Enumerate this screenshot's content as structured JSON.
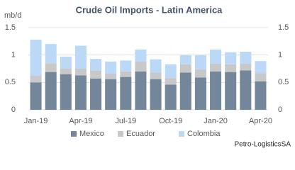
{
  "chart_data": {
    "type": "stacked_bar",
    "title": "Crude Oil Imports - Latin America",
    "y_label": "mb/d",
    "source": "Petro-LogisticsSA",
    "categories": [
      "Jan-19",
      null,
      null,
      "Apr-19",
      null,
      null,
      "Jul-19",
      null,
      null,
      "Oct-19",
      null,
      null,
      "Jan-20",
      null,
      null,
      "Apr-20"
    ],
    "series": [
      {
        "name": "Mexico",
        "color": "#74879a",
        "values": [
          0.5,
          0.69,
          0.65,
          0.63,
          0.57,
          0.56,
          0.6,
          0.7,
          0.56,
          0.46,
          0.68,
          0.59,
          0.7,
          0.69,
          0.72,
          0.52
        ]
      },
      {
        "name": "Ecuador",
        "color": "#c8c8c8",
        "values": [
          0.12,
          0.16,
          0.1,
          0.12,
          0.15,
          0.1,
          0.1,
          0.18,
          0.12,
          0.12,
          0.15,
          0.15,
          0.14,
          0.14,
          0.12,
          0.15
        ]
      },
      {
        "name": "Colombia",
        "color": "#bcd8f7",
        "values": [
          0.66,
          0.35,
          0.22,
          0.42,
          0.21,
          0.22,
          0.2,
          0.22,
          0.24,
          0.25,
          0.17,
          0.26,
          0.26,
          0.22,
          0.22,
          0.22
        ]
      }
    ],
    "ylim": [
      0,
      1.5
    ],
    "yticks": [
      0,
      0.5,
      1,
      1.5
    ],
    "y2lim": [
      0,
      1.5
    ],
    "y2ticks": [
      0,
      0.5,
      1,
      1.5
    ],
    "grid": true,
    "legend": "bottom"
  }
}
